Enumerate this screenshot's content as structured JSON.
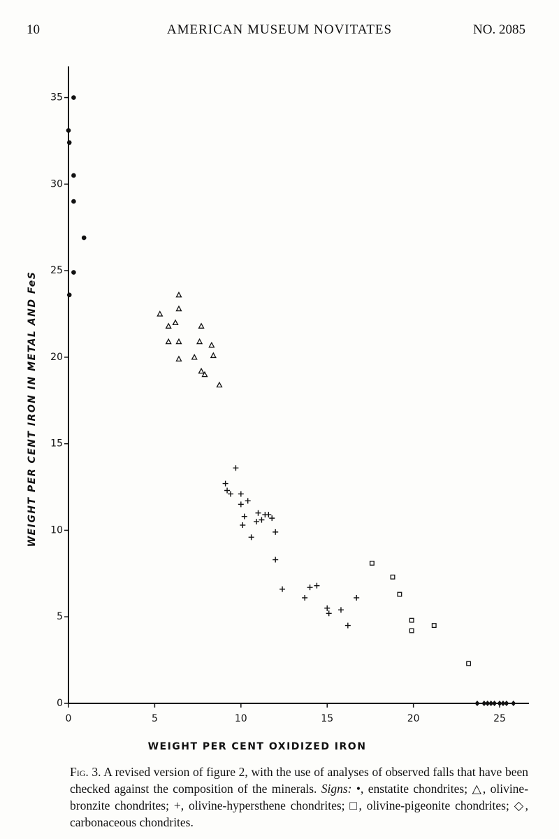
{
  "header": {
    "page": "10",
    "journal": "AMERICAN MUSEUM NOVITATES",
    "number": "NO. 2085"
  },
  "chart_data": {
    "type": "scatter",
    "x_label": "WEIGHT PER CENT OXIDIZED IRON",
    "y_label": "WEIGHT PER CENT IRON IN METAL AND FeS",
    "xlim": [
      0,
      26.7
    ],
    "ylim": [
      0,
      36.8
    ],
    "xticks": [
      0,
      5,
      10,
      15,
      20,
      25
    ],
    "yticks": [
      0,
      5,
      10,
      15,
      20,
      25,
      30,
      35
    ],
    "grid": false,
    "series": [
      {
        "name": "enstatite chondrites",
        "symbol": "•",
        "marker": "circle",
        "color": "#111111",
        "x": [
          0.3,
          0,
          0.05,
          0.3,
          0.3,
          0.9,
          0.3,
          0.05
        ],
        "values": [
          35.0,
          33.1,
          32.4,
          30.5,
          29.0,
          26.9,
          24.9,
          23.6
        ]
      },
      {
        "name": "olivine-bronzite chondrites",
        "symbol": "△",
        "marker": "triangle",
        "color": "#111111",
        "x": [
          5.3,
          6.4,
          6.4,
          5.8,
          6.2,
          7.7,
          5.8,
          6.4,
          7.6,
          8.3,
          6.4,
          7.3,
          8.4,
          7.7,
          7.9,
          8.75
        ],
        "values": [
          22.5,
          23.6,
          22.8,
          21.8,
          22.0,
          21.8,
          20.9,
          20.9,
          20.9,
          20.7,
          19.9,
          20.0,
          20.1,
          19.2,
          19.0,
          18.4
        ]
      },
      {
        "name": "olivine-hypersthene chondrites",
        "symbol": "+",
        "marker": "plus",
        "color": "#111111",
        "x": [
          9.7,
          9.1,
          9.2,
          9.4,
          10.0,
          10.4,
          10.0,
          10.2,
          10.1,
          11.0,
          11.4,
          11.6,
          11.8,
          10.9,
          11.2,
          10.6,
          12.0,
          12.0,
          12.4,
          13.7,
          14.0,
          14.4,
          15.0,
          15.1,
          15.8,
          16.2,
          16.7
        ],
        "values": [
          13.6,
          12.7,
          12.3,
          12.1,
          12.1,
          11.7,
          11.5,
          10.8,
          10.3,
          11.0,
          10.9,
          10.9,
          10.7,
          10.5,
          10.6,
          9.6,
          9.9,
          8.3,
          6.6,
          6.1,
          6.7,
          6.8,
          5.5,
          5.2,
          5.4,
          4.5,
          6.1
        ]
      },
      {
        "name": "olivine-pigeonite chondrites",
        "symbol": "□",
        "marker": "square",
        "color": "#111111",
        "x": [
          17.6,
          18.8,
          19.2,
          19.9,
          19.9,
          21.2,
          23.2
        ],
        "values": [
          8.1,
          7.3,
          6.3,
          4.8,
          4.2,
          4.5,
          2.3
        ]
      },
      {
        "name": "carbonaceous chondrites",
        "symbol": "◇",
        "marker": "diamond",
        "color": "#111111",
        "x": [
          23.7,
          24.1,
          24.3,
          24.5,
          24.7,
          25.0,
          25.2,
          25.4,
          25.8
        ],
        "values": [
          0,
          0,
          0,
          0,
          0,
          0,
          0,
          0,
          0
        ]
      }
    ]
  },
  "caption": {
    "figure": "Fig. 3.",
    "text": "A revised version of figure 2, with the use of analyses of observed falls that have been checked against the composition of the minerals.",
    "signs": "Signs:",
    "comma": ",",
    "semicolon": ";",
    "period": "."
  }
}
